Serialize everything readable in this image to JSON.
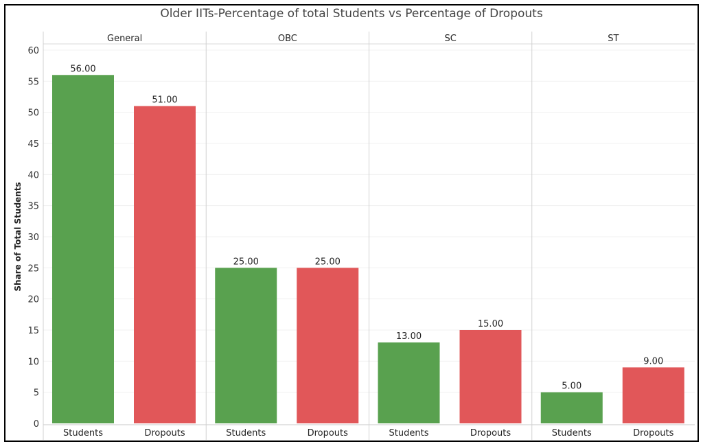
{
  "chart_data": {
    "type": "bar",
    "title": "Older IITs-Percentage of total Students vs Percentage of Dropouts",
    "ylabel": "Share of Total Students",
    "xlabel": "",
    "ylim": [
      0,
      60
    ],
    "yticks": [
      0,
      5,
      10,
      15,
      20,
      25,
      30,
      35,
      40,
      45,
      50,
      55,
      60
    ],
    "grid": true,
    "panels": [
      "General",
      "OBC",
      "SC",
      "ST"
    ],
    "categories": [
      "Students",
      "Dropouts"
    ],
    "colors": {
      "Students": "#59a14f",
      "Dropouts": "#e15759"
    },
    "values": {
      "General": [
        56,
        51
      ],
      "OBC": [
        25,
        25
      ],
      "SC": [
        13,
        15
      ],
      "ST": [
        5,
        9
      ]
    },
    "value_labels": {
      "General": [
        "56.00",
        "51.00"
      ],
      "OBC": [
        "25.00",
        "25.00"
      ],
      "SC": [
        "13.00",
        "15.00"
      ],
      "ST": [
        "5.00",
        "9.00"
      ]
    }
  }
}
